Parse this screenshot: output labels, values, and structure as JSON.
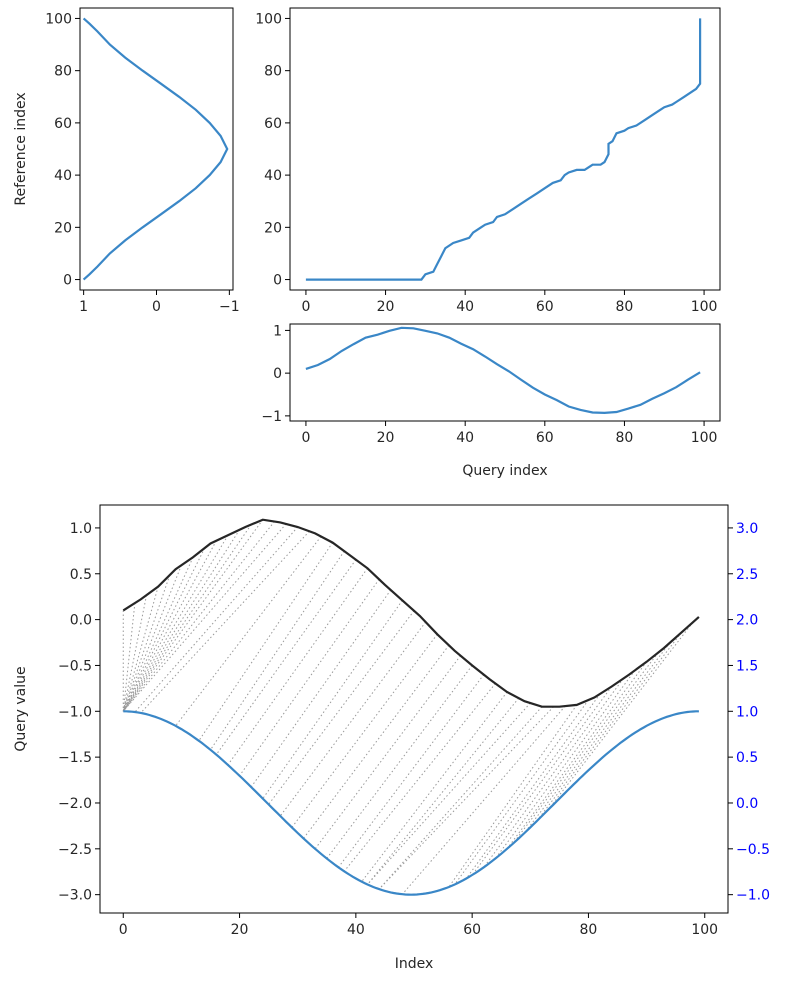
{
  "chart_data": [
    {
      "panel": "reference-series",
      "type": "line",
      "ylabel": "Reference index",
      "xlim": [
        1.05,
        -1.05
      ],
      "ylim": [
        -4,
        104
      ],
      "x_ticks": [
        1,
        0,
        -1
      ],
      "x_tick_labels": [
        "1",
        "0",
        "−1"
      ],
      "y_ticks": [
        0,
        20,
        40,
        60,
        80,
        100
      ],
      "y_tick_labels": [
        "0",
        "20",
        "40",
        "60",
        "80",
        "100"
      ],
      "series": [
        {
          "color": "#3a87c7",
          "points_x_value_y_index": [
            [
              1,
              0
            ],
            [
              0.92,
              2
            ],
            [
              0.81,
              5
            ],
            [
              0.64,
              10
            ],
            [
              0.43,
              15
            ],
            [
              0.19,
              20
            ],
            [
              -0.06,
              25
            ],
            [
              -0.31,
              30
            ],
            [
              -0.54,
              35
            ],
            [
              -0.73,
              40
            ],
            [
              -0.88,
              45
            ],
            [
              -0.97,
              50
            ],
            [
              -0.88,
              55
            ],
            [
              -0.73,
              60
            ],
            [
              -0.54,
              65
            ],
            [
              -0.31,
              70
            ],
            [
              -0.06,
              75
            ],
            [
              0.19,
              80
            ],
            [
              0.43,
              85
            ],
            [
              0.64,
              90
            ],
            [
              0.81,
              95
            ],
            [
              0.92,
              98
            ],
            [
              1,
              100
            ]
          ]
        }
      ]
    },
    {
      "panel": "warping-path",
      "type": "line",
      "xlim": [
        -4,
        104
      ],
      "ylim": [
        -4,
        104
      ],
      "x_ticks": [
        0,
        20,
        40,
        60,
        80,
        100
      ],
      "x_tick_labels": [
        "0",
        "20",
        "40",
        "60",
        "80",
        "100"
      ],
      "y_ticks": [
        0,
        20,
        40,
        60,
        80,
        100
      ],
      "y_tick_labels": [
        "0",
        "20",
        "40",
        "60",
        "80",
        "100"
      ],
      "series": [
        {
          "color": "#3a87c7",
          "points": [
            [
              0,
              0
            ],
            [
              29,
              0
            ],
            [
              30,
              2
            ],
            [
              32,
              3
            ],
            [
              33,
              6
            ],
            [
              34,
              9
            ],
            [
              35,
              12
            ],
            [
              37,
              14
            ],
            [
              39,
              15
            ],
            [
              41,
              16
            ],
            [
              42,
              18
            ],
            [
              44,
              20
            ],
            [
              45,
              21
            ],
            [
              47,
              22
            ],
            [
              48,
              24
            ],
            [
              50,
              25
            ],
            [
              52,
              27
            ],
            [
              54,
              29
            ],
            [
              56,
              31
            ],
            [
              58,
              33
            ],
            [
              60,
              35
            ],
            [
              62,
              37
            ],
            [
              64,
              38
            ],
            [
              65,
              40
            ],
            [
              66,
              41
            ],
            [
              68,
              42
            ],
            [
              70,
              42
            ],
            [
              71,
              43
            ],
            [
              72,
              44
            ],
            [
              74,
              44
            ],
            [
              75,
              45
            ],
            [
              76,
              48
            ],
            [
              76,
              52
            ],
            [
              77,
              53
            ],
            [
              78,
              56
            ],
            [
              80,
              57
            ],
            [
              81,
              58
            ],
            [
              83,
              59
            ],
            [
              85,
              61
            ],
            [
              87,
              63
            ],
            [
              89,
              65
            ],
            [
              90,
              66
            ],
            [
              92,
              67
            ],
            [
              93,
              68
            ],
            [
              95,
              70
            ],
            [
              97,
              72
            ],
            [
              98,
              73
            ],
            [
              99,
              75
            ],
            [
              99,
              100
            ]
          ]
        }
      ]
    },
    {
      "panel": "query-series",
      "type": "line",
      "xlabel": "Query index",
      "xlim": [
        -4,
        104
      ],
      "ylim": [
        -1.12,
        1.15
      ],
      "x_ticks": [
        0,
        20,
        40,
        60,
        80,
        100
      ],
      "x_tick_labels": [
        "0",
        "20",
        "40",
        "60",
        "80",
        "100"
      ],
      "y_ticks": [
        -1,
        0,
        1
      ],
      "y_tick_labels": [
        "−1",
        "0",
        "1"
      ],
      "series": [
        {
          "color": "#3a87c7",
          "points": [
            [
              0,
              0.1
            ],
            [
              3,
              0.19
            ],
            [
              6,
              0.33
            ],
            [
              9,
              0.52
            ],
            [
              12,
              0.68
            ],
            [
              15,
              0.83
            ],
            [
              18,
              0.9
            ],
            [
              21,
              0.99
            ],
            [
              24,
              1.06
            ],
            [
              27,
              1.05
            ],
            [
              30,
              0.99
            ],
            [
              33,
              0.93
            ],
            [
              36,
              0.83
            ],
            [
              39,
              0.69
            ],
            [
              42,
              0.56
            ],
            [
              45,
              0.39
            ],
            [
              48,
              0.21
            ],
            [
              51,
              0.04
            ],
            [
              54,
              -0.15
            ],
            [
              57,
              -0.34
            ],
            [
              60,
              -0.5
            ],
            [
              63,
              -0.63
            ],
            [
              66,
              -0.78
            ],
            [
              69,
              -0.86
            ],
            [
              72,
              -0.92
            ],
            [
              75,
              -0.93
            ],
            [
              78,
              -0.91
            ],
            [
              81,
              -0.83
            ],
            [
              84,
              -0.74
            ],
            [
              87,
              -0.6
            ],
            [
              90,
              -0.47
            ],
            [
              93,
              -0.33
            ],
            [
              96,
              -0.15
            ],
            [
              99,
              0.02
            ]
          ]
        }
      ]
    },
    {
      "panel": "alignment",
      "type": "line",
      "xlabel": "Index",
      "ylabel": "Query value",
      "xlim": [
        -4,
        104
      ],
      "ylim": [
        -3.2,
        1.25
      ],
      "y2lim": [
        -1.2,
        3.25
      ],
      "x_ticks": [
        0,
        20,
        40,
        60,
        80,
        100
      ],
      "x_tick_labels": [
        "0",
        "20",
        "40",
        "60",
        "80",
        "100"
      ],
      "y_ticks": [
        1,
        0.5,
        0,
        -0.5,
        -1,
        -1.5,
        -2,
        -2.5,
        -3
      ],
      "y_tick_labels": [
        "1.0",
        "0.5",
        "0.0",
        "−0.5",
        "−1.0",
        "−1.5",
        "−2.0",
        "−2.5",
        "−3.0"
      ],
      "y2_ticks": [
        3,
        2.5,
        2,
        1.5,
        1,
        0.5,
        0,
        -0.5,
        -1
      ],
      "y2_tick_labels": [
        "3.0",
        "2.5",
        "2.0",
        "1.5",
        "1.0",
        "0.5",
        "0.0",
        "−0.5",
        "−1.0"
      ],
      "y2_tick_color": "#0000ff",
      "series": [
        {
          "role": "query",
          "color": "#262626",
          "points": [
            [
              0,
              0.1
            ],
            [
              3,
              0.22
            ],
            [
              6,
              0.36
            ],
            [
              9,
              0.55
            ],
            [
              12,
              0.68
            ],
            [
              15,
              0.83
            ],
            [
              18,
              0.92
            ],
            [
              21,
              1.01
            ],
            [
              24,
              1.09
            ],
            [
              27,
              1.06
            ],
            [
              30,
              1.01
            ],
            [
              33,
              0.94
            ],
            [
              36,
              0.84
            ],
            [
              39,
              0.7
            ],
            [
              42,
              0.56
            ],
            [
              45,
              0.38
            ],
            [
              48,
              0.21
            ],
            [
              51,
              0.04
            ],
            [
              54,
              -0.16
            ],
            [
              57,
              -0.34
            ],
            [
              60,
              -0.5
            ],
            [
              63,
              -0.65
            ],
            [
              66,
              -0.79
            ],
            [
              69,
              -0.89
            ],
            [
              72,
              -0.95
            ],
            [
              75,
              -0.95
            ],
            [
              78,
              -0.93
            ],
            [
              81,
              -0.85
            ],
            [
              84,
              -0.73
            ],
            [
              87,
              -0.6
            ],
            [
              90,
              -0.46
            ],
            [
              93,
              -0.31
            ],
            [
              96,
              -0.14
            ],
            [
              99,
              0.03
            ]
          ]
        },
        {
          "role": "reference",
          "color": "#3a87c7",
          "formula_y2": "cos(2*pi*x/99)",
          "x_range": [
            0,
            99
          ]
        },
        {
          "role": "matches",
          "color": "#9a9a9a",
          "style": "dotted",
          "pairs": "warping-path"
        }
      ]
    }
  ]
}
